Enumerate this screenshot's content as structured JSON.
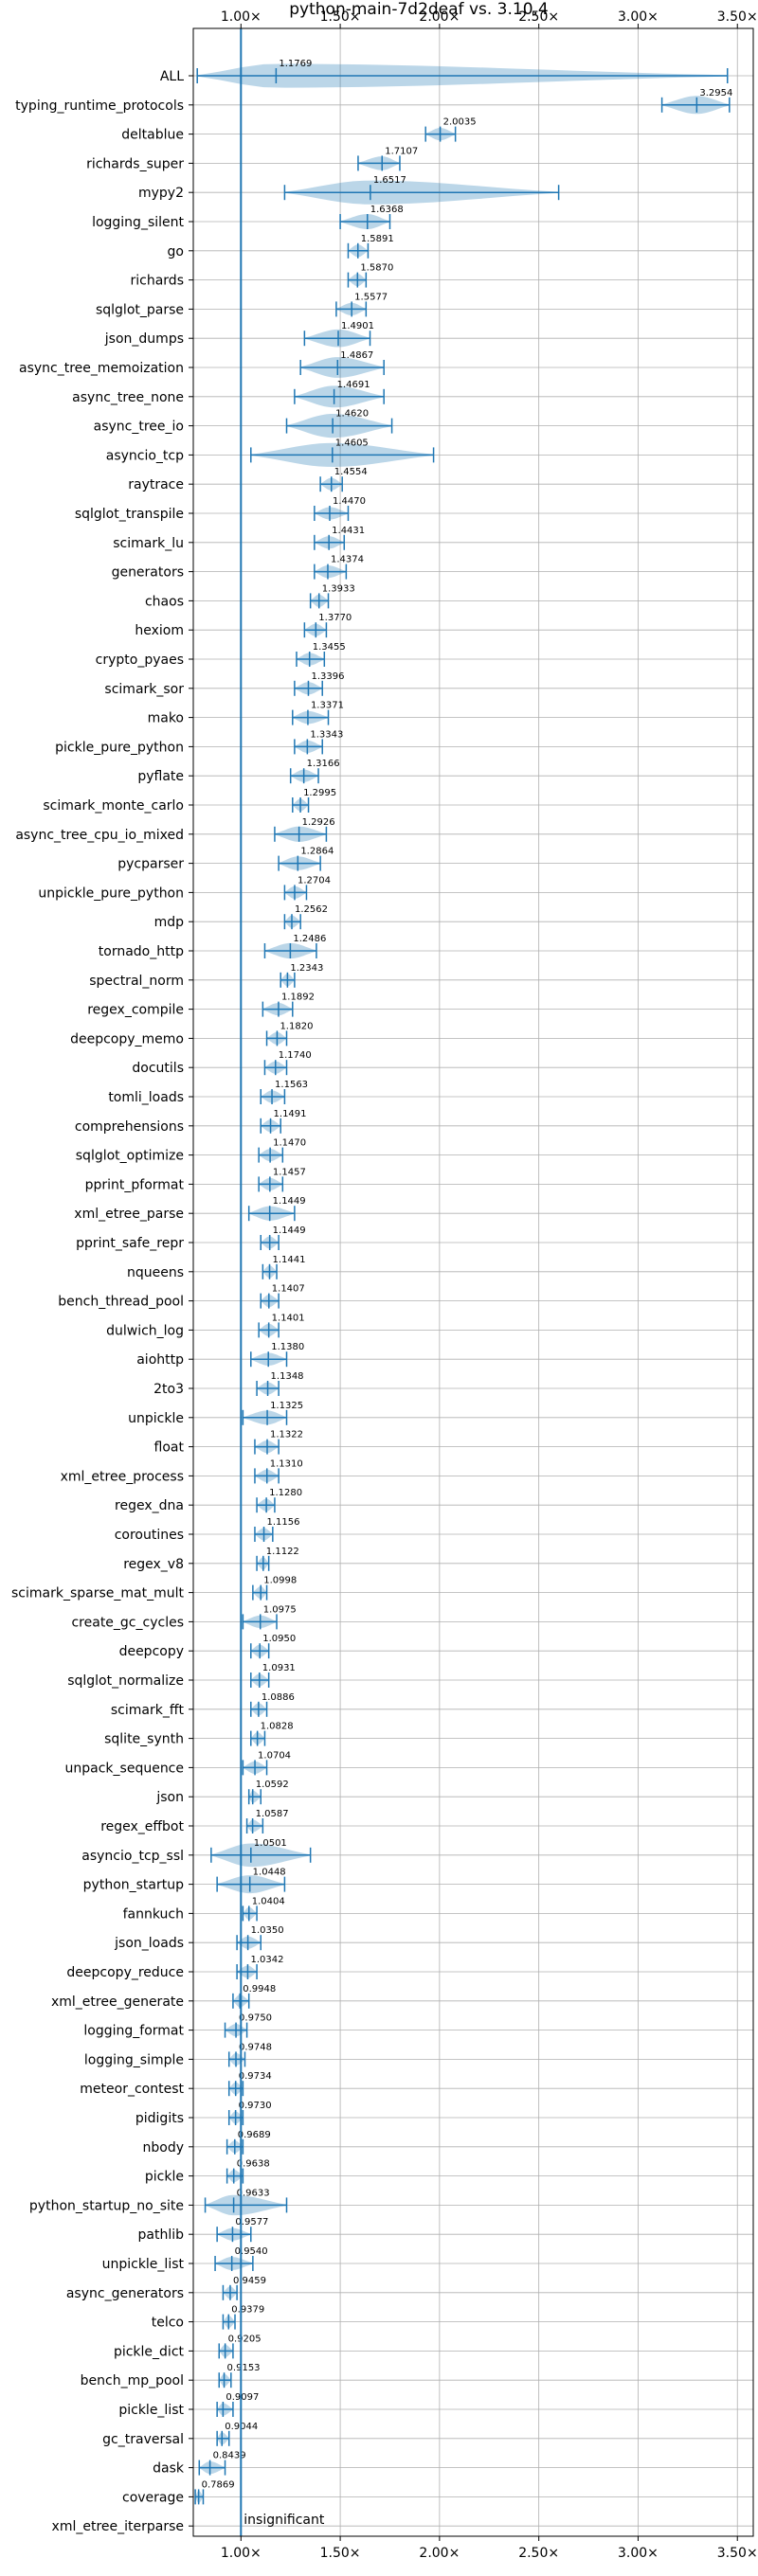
{
  "chart_data": {
    "type": "violin",
    "title": "python-main-7d2deaf vs. 3.10.4",
    "xlim": [
      0.76,
      3.58
    ],
    "xticks": [
      1.0,
      1.5,
      2.0,
      2.5,
      3.0,
      3.5
    ],
    "xtick_labels": [
      "1.00×",
      "1.50×",
      "2.00×",
      "2.50×",
      "3.00×",
      "3.50×"
    ],
    "grid": true,
    "reference_line": 1.0,
    "color": "#1f77b4",
    "categories": [
      "ALL",
      "typing_runtime_protocols",
      "deltablue",
      "richards_super",
      "mypy2",
      "logging_silent",
      "go",
      "richards",
      "sqlglot_parse",
      "json_dumps",
      "async_tree_memoization",
      "async_tree_none",
      "async_tree_io",
      "asyncio_tcp",
      "raytrace",
      "sqlglot_transpile",
      "scimark_lu",
      "generators",
      "chaos",
      "hexiom",
      "crypto_pyaes",
      "scimark_sor",
      "mako",
      "pickle_pure_python",
      "pyflate",
      "scimark_monte_carlo",
      "async_tree_cpu_io_mixed",
      "pycparser",
      "unpickle_pure_python",
      "mdp",
      "tornado_http",
      "spectral_norm",
      "regex_compile",
      "deepcopy_memo",
      "docutils",
      "tomli_loads",
      "comprehensions",
      "sqlglot_optimize",
      "pprint_pformat",
      "xml_etree_parse",
      "pprint_safe_repr",
      "nqueens",
      "bench_thread_pool",
      "dulwich_log",
      "aiohttp",
      "2to3",
      "unpickle",
      "float",
      "xml_etree_process",
      "regex_dna",
      "coroutines",
      "regex_v8",
      "scimark_sparse_mat_mult",
      "create_gc_cycles",
      "deepcopy",
      "sqlglot_normalize",
      "scimark_fft",
      "sqlite_synth",
      "unpack_sequence",
      "json",
      "regex_effbot",
      "asyncio_tcp_ssl",
      "python_startup",
      "fannkuch",
      "json_loads",
      "deepcopy_reduce",
      "xml_etree_generate",
      "logging_format",
      "logging_simple",
      "meteor_contest",
      "pidigits",
      "nbody",
      "pickle",
      "python_startup_no_site",
      "pathlib",
      "unpickle_list",
      "async_generators",
      "telco",
      "pickle_dict",
      "bench_mp_pool",
      "pickle_list",
      "gc_traversal",
      "dask",
      "coverage",
      "xml_etree_iterparse"
    ],
    "values": [
      1.1769,
      3.2954,
      2.0035,
      1.7107,
      1.6517,
      1.6368,
      1.5891,
      1.587,
      1.5577,
      1.4901,
      1.4867,
      1.4691,
      1.462,
      1.4605,
      1.4554,
      1.447,
      1.4431,
      1.4374,
      1.3933,
      1.377,
      1.3455,
      1.3396,
      1.3371,
      1.3343,
      1.3166,
      1.2995,
      1.2926,
      1.2864,
      1.2704,
      1.2562,
      1.2486,
      1.2343,
      1.1892,
      1.182,
      1.174,
      1.1563,
      1.1491,
      1.147,
      1.1457,
      1.1449,
      1.1449,
      1.1441,
      1.1407,
      1.1401,
      1.138,
      1.1348,
      1.1325,
      1.1322,
      1.131,
      1.128,
      1.1156,
      1.1122,
      1.0998,
      1.0975,
      1.095,
      1.0931,
      1.0886,
      1.0828,
      1.0704,
      1.0592,
      1.0587,
      1.0501,
      1.0448,
      1.0404,
      1.035,
      1.0342,
      0.9948,
      0.975,
      0.9748,
      0.9734,
      0.973,
      0.9689,
      0.9638,
      0.9633,
      0.9577,
      0.954,
      0.9459,
      0.9379,
      0.9205,
      0.9153,
      0.9097,
      0.9044,
      0.8439,
      0.7869,
      null
    ],
    "value_labels": [
      "1.1769",
      "3.2954",
      "2.0035",
      "1.7107",
      "1.6517",
      "1.6368",
      "1.5891",
      "1.5870",
      "1.5577",
      "1.4901",
      "1.4867",
      "1.4691",
      "1.4620",
      "1.4605",
      "1.4554",
      "1.4470",
      "1.4431",
      "1.4374",
      "1.3933",
      "1.3770",
      "1.3455",
      "1.3396",
      "1.3371",
      "1.3343",
      "1.3166",
      "1.2995",
      "1.2926",
      "1.2864",
      "1.2704",
      "1.2562",
      "1.2486",
      "1.2343",
      "1.1892",
      "1.1820",
      "1.1740",
      "1.1563",
      "1.1491",
      "1.1470",
      "1.1457",
      "1.1449",
      "1.1449",
      "1.1441",
      "1.1407",
      "1.1401",
      "1.1380",
      "1.1348",
      "1.1325",
      "1.1322",
      "1.1310",
      "1.1280",
      "1.1156",
      "1.1122",
      "1.0998",
      "1.0975",
      "1.0950",
      "1.0931",
      "1.0886",
      "1.0828",
      "1.0704",
      "1.0592",
      "1.0587",
      "1.0501",
      "1.0448",
      "1.0404",
      "1.0350",
      "1.0342",
      "0.9948",
      "0.9750",
      "0.9748",
      "0.9734",
      "0.9730",
      "0.9689",
      "0.9638",
      "0.9633",
      "0.9577",
      "0.9540",
      "0.9459",
      "0.9379",
      "0.9205",
      "0.9153",
      "0.9097",
      "0.9044",
      "0.8439",
      "0.7869",
      ""
    ],
    "ranges": [
      [
        0.78,
        3.45
      ],
      [
        3.12,
        3.46
      ],
      [
        1.93,
        2.08
      ],
      [
        1.59,
        1.8
      ],
      [
        1.22,
        2.6
      ],
      [
        1.5,
        1.75
      ],
      [
        1.54,
        1.64
      ],
      [
        1.54,
        1.63
      ],
      [
        1.48,
        1.63
      ],
      [
        1.32,
        1.65
      ],
      [
        1.3,
        1.72
      ],
      [
        1.27,
        1.72
      ],
      [
        1.23,
        1.76
      ],
      [
        1.05,
        1.97
      ],
      [
        1.4,
        1.51
      ],
      [
        1.37,
        1.54
      ],
      [
        1.37,
        1.52
      ],
      [
        1.37,
        1.53
      ],
      [
        1.35,
        1.44
      ],
      [
        1.32,
        1.43
      ],
      [
        1.28,
        1.42
      ],
      [
        1.27,
        1.41
      ],
      [
        1.26,
        1.44
      ],
      [
        1.27,
        1.41
      ],
      [
        1.25,
        1.39
      ],
      [
        1.26,
        1.34
      ],
      [
        1.17,
        1.43
      ],
      [
        1.19,
        1.4
      ],
      [
        1.22,
        1.33
      ],
      [
        1.22,
        1.3
      ],
      [
        1.12,
        1.38
      ],
      [
        1.2,
        1.27
      ],
      [
        1.11,
        1.26
      ],
      [
        1.13,
        1.23
      ],
      [
        1.12,
        1.23
      ],
      [
        1.1,
        1.22
      ],
      [
        1.1,
        1.2
      ],
      [
        1.09,
        1.21
      ],
      [
        1.09,
        1.21
      ],
      [
        1.04,
        1.27
      ],
      [
        1.1,
        1.19
      ],
      [
        1.11,
        1.18
      ],
      [
        1.1,
        1.19
      ],
      [
        1.09,
        1.19
      ],
      [
        1.05,
        1.23
      ],
      [
        1.08,
        1.19
      ],
      [
        1.01,
        1.23
      ],
      [
        1.07,
        1.19
      ],
      [
        1.07,
        1.19
      ],
      [
        1.08,
        1.17
      ],
      [
        1.07,
        1.16
      ],
      [
        1.08,
        1.14
      ],
      [
        1.06,
        1.13
      ],
      [
        1.01,
        1.18
      ],
      [
        1.05,
        1.14
      ],
      [
        1.05,
        1.14
      ],
      [
        1.05,
        1.13
      ],
      [
        1.05,
        1.12
      ],
      [
        1.01,
        1.13
      ],
      [
        1.04,
        1.1
      ],
      [
        1.03,
        1.11
      ],
      [
        0.85,
        1.35
      ],
      [
        0.88,
        1.22
      ],
      [
        1.01,
        1.08
      ],
      [
        0.98,
        1.1
      ],
      [
        0.98,
        1.08
      ],
      [
        0.96,
        1.04
      ],
      [
        0.92,
        1.03
      ],
      [
        0.94,
        1.02
      ],
      [
        0.94,
        1.01
      ],
      [
        0.94,
        1.01
      ],
      [
        0.93,
        1.01
      ],
      [
        0.93,
        1.01
      ],
      [
        0.82,
        1.23
      ],
      [
        0.88,
        1.05
      ],
      [
        0.87,
        1.06
      ],
      [
        0.91,
        0.98
      ],
      [
        0.91,
        0.97
      ],
      [
        0.89,
        0.96
      ],
      [
        0.89,
        0.95
      ],
      [
        0.88,
        0.96
      ],
      [
        0.88,
        0.94
      ],
      [
        0.79,
        0.92
      ],
      [
        0.77,
        0.81
      ],
      null
    ],
    "annotation": "insignificant"
  }
}
